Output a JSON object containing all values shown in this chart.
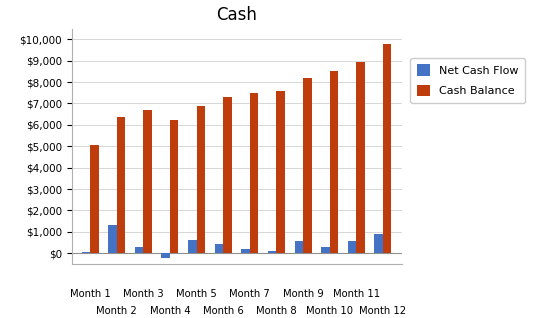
{
  "title": "Cash",
  "categories": [
    "Month 1",
    "Month 2",
    "Month 3",
    "Month 4",
    "Month 5",
    "Month 6",
    "Month 7",
    "Month 8",
    "Month 9",
    "Month 10",
    "Month 11",
    "Month 12"
  ],
  "net_cash_flow": [
    80,
    1300,
    300,
    -200,
    600,
    450,
    200,
    100,
    550,
    300,
    580,
    900
  ],
  "cash_balance": [
    5050,
    6350,
    6700,
    6250,
    6900,
    7300,
    7500,
    7600,
    8200,
    8500,
    8950,
    9800
  ],
  "bar_color_net": "#4472C4",
  "bar_color_cash": "#BF3C0C",
  "legend_net": "Net Cash Flow",
  "legend_cash": "Cash Balance",
  "ylim": [
    -500,
    10500
  ],
  "yticks": [
    0,
    1000,
    2000,
    3000,
    4000,
    5000,
    6000,
    7000,
    8000,
    9000,
    10000
  ],
  "background_color": "#FFFFFF",
  "plot_bg_color": "#FFFFFF",
  "grid_color": "#D0D0D0",
  "title_fontsize": 12
}
